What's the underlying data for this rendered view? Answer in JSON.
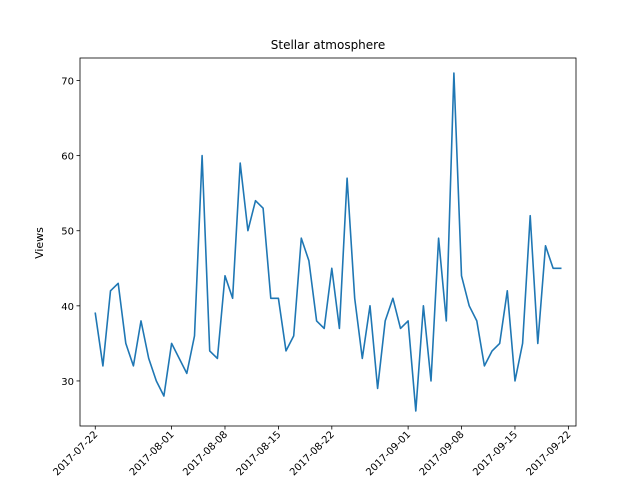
{
  "chart_data": {
    "type": "line",
    "title": "Stellar atmosphere",
    "xlabel": "",
    "ylabel": "Views",
    "grid": false,
    "legend": null,
    "line_color": "#1f77b4",
    "x_range": [
      "2017-07-20",
      "2017-09-23"
    ],
    "ylim": [
      24,
      73
    ],
    "x_ticks": [
      "2017-07-22",
      "2017-08-01",
      "2017-08-08",
      "2017-08-15",
      "2017-08-22",
      "2017-09-01",
      "2017-09-08",
      "2017-09-15",
      "2017-09-22"
    ],
    "y_ticks": [
      30,
      40,
      50,
      60,
      70
    ],
    "series": [
      {
        "x": [
          "2017-07-22",
          "2017-07-23",
          "2017-07-24",
          "2017-07-25",
          "2017-07-26",
          "2017-07-27",
          "2017-07-28",
          "2017-07-29",
          "2017-07-30",
          "2017-07-31",
          "2017-08-01",
          "2017-08-02",
          "2017-08-03",
          "2017-08-04",
          "2017-08-05",
          "2017-08-06",
          "2017-08-07",
          "2017-08-08",
          "2017-08-09",
          "2017-08-10",
          "2017-08-11",
          "2017-08-12",
          "2017-08-13",
          "2017-08-14",
          "2017-08-15",
          "2017-08-16",
          "2017-08-17",
          "2017-08-18",
          "2017-08-19",
          "2017-08-20",
          "2017-08-21",
          "2017-08-22",
          "2017-08-23",
          "2017-08-24",
          "2017-08-25",
          "2017-08-26",
          "2017-08-27",
          "2017-08-28",
          "2017-08-29",
          "2017-08-30",
          "2017-08-31",
          "2017-09-01",
          "2017-09-02",
          "2017-09-03",
          "2017-09-04",
          "2017-09-05",
          "2017-09-06",
          "2017-09-07",
          "2017-09-08",
          "2017-09-09",
          "2017-09-10",
          "2017-09-11",
          "2017-09-12",
          "2017-09-13",
          "2017-09-14",
          "2017-09-15",
          "2017-09-16",
          "2017-09-17",
          "2017-09-18",
          "2017-09-19",
          "2017-09-20",
          "2017-09-21"
        ],
        "values": [
          39,
          32,
          42,
          43,
          35,
          32,
          38,
          33,
          30,
          28,
          35,
          33,
          31,
          36,
          60,
          34,
          33,
          44,
          41,
          59,
          50,
          54,
          53,
          41,
          41,
          34,
          36,
          49,
          46,
          38,
          37,
          45,
          37,
          57,
          41,
          33,
          40,
          29,
          38,
          41,
          37,
          38,
          26,
          40,
          30,
          49,
          38,
          71,
          44,
          40,
          38,
          32,
          34,
          35,
          42,
          30,
          35,
          52,
          35,
          48,
          45,
          45
        ]
      }
    ]
  }
}
